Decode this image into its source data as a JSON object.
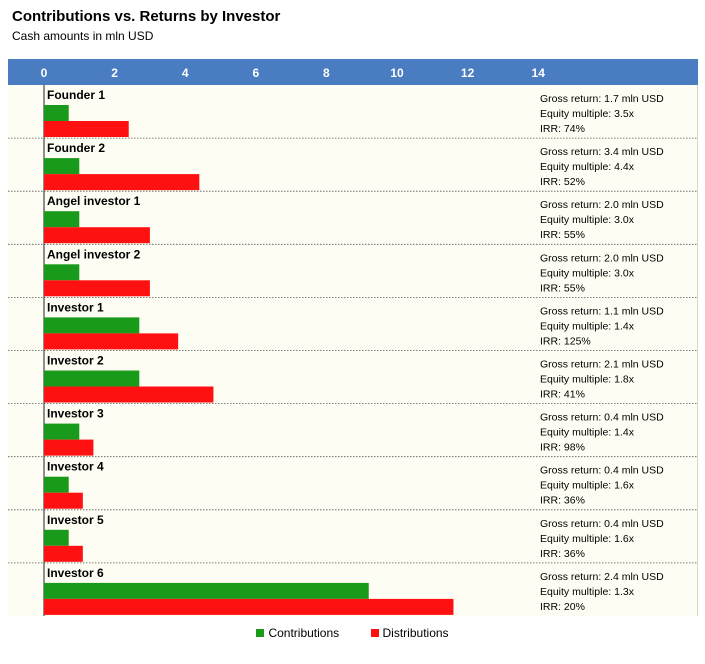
{
  "title": "Contributions vs. Returns by Investor",
  "subtitle": "Cash amounts in mln USD",
  "colors": {
    "contributions": "#1a9a1a",
    "distributions": "#ff1111",
    "axis_band": "#4a7cc2",
    "plot_bg": "#fdfdf3"
  },
  "legend": {
    "contributions": "Contributions",
    "distributions": "Distributions"
  },
  "chart_data": {
    "type": "bar",
    "orientation": "horizontal",
    "title": "Contributions vs. Returns by Investor",
    "subtitle": "Cash amounts in mln USD",
    "x_ticks": [
      "0",
      "2",
      "4",
      "6",
      "8",
      "10",
      "12",
      "14"
    ],
    "xlim": [
      0,
      14
    ],
    "legend_position": "bottom",
    "categories": [
      "Founder 1",
      "Founder 2",
      "Angel investor 1",
      "Angel investor 2",
      "Investor 1",
      "Investor 2",
      "Investor 3",
      "Investor 4",
      "Investor 5",
      "Investor 6"
    ],
    "series": [
      {
        "name": "Contributions",
        "values": [
          0.7,
          1.0,
          1.0,
          1.0,
          2.7,
          2.7,
          1.0,
          0.7,
          0.7,
          9.2
        ]
      },
      {
        "name": "Distributions",
        "values": [
          2.4,
          4.4,
          3.0,
          3.0,
          3.8,
          4.8,
          1.4,
          1.1,
          1.1,
          11.6
        ]
      }
    ],
    "annotations": [
      [
        "Gross return: 1.7 mln USD",
        "Equity multiple: 3.5x",
        "IRR: 74%"
      ],
      [
        "Gross return: 3.4 mln USD",
        "Equity multiple: 4.4x",
        "IRR: 52%"
      ],
      [
        "Gross return: 2.0 mln USD",
        "Equity multiple: 3.0x",
        "IRR: 55%"
      ],
      [
        "Gross return: 2.0 mln USD",
        "Equity multiple: 3.0x",
        "IRR: 55%"
      ],
      [
        "Gross return: 1.1 mln USD",
        "Equity multiple: 1.4x",
        "IRR: 125%"
      ],
      [
        "Gross return: 2.1 mln USD",
        "Equity multiple: 1.8x",
        "IRR: 41%"
      ],
      [
        "Gross return: 0.4 mln USD",
        "Equity multiple: 1.4x",
        "IRR: 98%"
      ],
      [
        "Gross return: 0.4 mln USD",
        "Equity multiple: 1.6x",
        "IRR: 36%"
      ],
      [
        "Gross return: 0.4 mln USD",
        "Equity multiple: 1.6x",
        "IRR: 36%"
      ],
      [
        "Gross return: 2.4 mln USD",
        "Equity multiple: 1.3x",
        "IRR: 20%"
      ]
    ]
  }
}
